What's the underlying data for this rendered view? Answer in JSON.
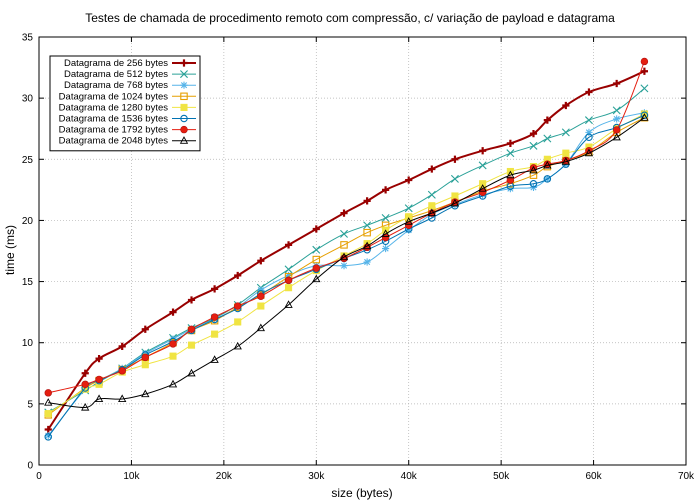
{
  "chart_data": {
    "type": "line",
    "title": "Testes de chamada de procedimento remoto com compressão, c/ variação de payload e datagrama",
    "xlabel": "size (bytes)",
    "ylabel": "time (ms)",
    "xlim": [
      0,
      70000
    ],
    "ylim": [
      0,
      35
    ],
    "xticks": [
      0,
      10000,
      20000,
      30000,
      40000,
      50000,
      60000,
      70000
    ],
    "xtick_labels": [
      "0",
      "10k",
      "20k",
      "30k",
      "40k",
      "50k",
      "60k",
      "70k"
    ],
    "yticks": [
      0,
      5,
      10,
      15,
      20,
      25,
      30,
      35
    ],
    "ytick_labels": [
      "0",
      "5",
      "10",
      "15",
      "20",
      "25",
      "30",
      "35"
    ],
    "grid": true,
    "legend_position": "top-left",
    "series": [
      {
        "name": "Datagrama de 256 bytes",
        "color": "#990000",
        "marker": "plus",
        "x": [
          1000,
          5000,
          6500,
          9000,
          11500,
          14500,
          16500,
          19000,
          21500,
          24000,
          27000,
          30000,
          33000,
          35500,
          37500,
          40000,
          42500,
          45000,
          48000,
          51000,
          53500,
          55000,
          57000,
          59500,
          62500,
          65500
        ],
        "y": [
          2.9,
          7.5,
          8.7,
          9.7,
          11.1,
          12.5,
          13.5,
          14.4,
          15.5,
          16.7,
          18.0,
          19.3,
          20.6,
          21.6,
          22.5,
          23.3,
          24.2,
          25.0,
          25.7,
          26.3,
          27.1,
          28.2,
          29.4,
          30.5,
          31.2,
          32.2
        ]
      },
      {
        "name": "Datagrama de 512 bytes",
        "color": "#2aa198",
        "marker": "x",
        "x": [
          1000,
          5000,
          6500,
          9000,
          11500,
          14500,
          16500,
          19000,
          21500,
          24000,
          27000,
          30000,
          33000,
          35500,
          37500,
          40000,
          42500,
          45000,
          48000,
          51000,
          53500,
          55000,
          57000,
          59500,
          62500,
          65500
        ],
        "y": [
          4.3,
          6.1,
          6.8,
          7.9,
          9.2,
          10.4,
          11.2,
          12.0,
          13.1,
          14.5,
          16.0,
          17.6,
          18.9,
          19.6,
          20.2,
          21.0,
          22.1,
          23.4,
          24.5,
          25.5,
          26.1,
          26.7,
          27.2,
          28.2,
          29.0,
          30.8
        ]
      },
      {
        "name": "Datagrama de 768 bytes",
        "color": "#56b4e9",
        "marker": "star",
        "x": [
          1000,
          5000,
          6500,
          9000,
          11500,
          14500,
          16500,
          19000,
          21500,
          24000,
          27000,
          30000,
          33000,
          35500,
          37500,
          40000,
          42500,
          45000,
          48000,
          51000,
          53500,
          55000,
          57000,
          59500,
          62500,
          65500
        ],
        "y": [
          2.4,
          6.2,
          6.9,
          7.9,
          9.1,
          10.3,
          11.1,
          11.9,
          12.9,
          14.3,
          15.5,
          16.3,
          16.3,
          16.6,
          17.7,
          19.2,
          20.5,
          21.3,
          22.1,
          22.6,
          22.7,
          23.4,
          24.6,
          27.2,
          28.3,
          28.8
        ]
      },
      {
        "name": "Datagrama de 1024 bytes",
        "color": "#e69f00",
        "marker": "square-open",
        "x": [
          1000,
          5000,
          6500,
          9000,
          11500,
          14500,
          16500,
          19000,
          21500,
          24000,
          27000,
          30000,
          33000,
          35500,
          37500,
          40000,
          42500,
          45000,
          48000,
          51000,
          53500,
          55000,
          57000,
          59500,
          62500,
          65500
        ],
        "y": [
          4.1,
          6.3,
          6.9,
          7.8,
          8.8,
          10.0,
          11.0,
          11.8,
          12.9,
          13.9,
          15.4,
          16.8,
          18.0,
          19.0,
          19.6,
          20.2,
          20.8,
          21.5,
          22.4,
          23.0,
          23.7,
          24.4,
          24.9,
          25.6,
          27.2,
          28.4
        ]
      },
      {
        "name": "Datagrama de 1280 bytes",
        "color": "#f0e442",
        "marker": "square-filled",
        "x": [
          1000,
          5000,
          6500,
          9000,
          11500,
          14500,
          16500,
          19000,
          21500,
          24000,
          27000,
          30000,
          33000,
          35500,
          37500,
          40000,
          42500,
          45000,
          48000,
          51000,
          53500,
          55000,
          57000,
          59500,
          62500,
          65500
        ],
        "y": [
          4.2,
          6.2,
          6.6,
          7.6,
          8.2,
          8.9,
          9.8,
          10.7,
          11.7,
          13.0,
          14.5,
          15.9,
          17.1,
          18.1,
          19.2,
          20.3,
          21.2,
          22.0,
          23.0,
          24.0,
          24.4,
          25.0,
          25.5,
          26.0,
          27.5,
          28.7
        ]
      },
      {
        "name": "Datagrama de 1536 bytes",
        "color": "#0072b2",
        "marker": "circle-open",
        "x": [
          1000,
          5000,
          6500,
          9000,
          11500,
          14500,
          16500,
          19000,
          21500,
          24000,
          27000,
          30000,
          33000,
          35500,
          37500,
          40000,
          42500,
          45000,
          48000,
          51000,
          53500,
          55000,
          57000,
          59500,
          62500,
          65500
        ],
        "y": [
          2.3,
          6.3,
          6.9,
          7.8,
          9.0,
          10.1,
          11.0,
          11.9,
          12.8,
          14.0,
          15.1,
          16.0,
          16.9,
          17.6,
          18.3,
          19.3,
          20.2,
          21.2,
          22.0,
          22.8,
          23.0,
          23.4,
          24.6,
          26.8,
          27.6,
          28.6
        ]
      },
      {
        "name": "Datagrama de 1792 bytes",
        "color": "#e51e10",
        "marker": "circle-filled",
        "x": [
          1000,
          5000,
          6500,
          9000,
          11500,
          14500,
          16500,
          19000,
          21500,
          24000,
          27000,
          30000,
          33000,
          35500,
          37500,
          40000,
          42500,
          45000,
          48000,
          51000,
          53500,
          55000,
          57000,
          59500,
          62500,
          65500
        ],
        "y": [
          5.9,
          6.6,
          7.0,
          7.7,
          8.8,
          9.9,
          11.1,
          12.1,
          13.0,
          13.8,
          15.1,
          16.1,
          16.9,
          17.8,
          18.6,
          19.6,
          20.6,
          21.5,
          22.3,
          23.3,
          24.3,
          24.6,
          24.9,
          25.7,
          27.4,
          33.0
        ]
      },
      {
        "name": "Datagrama de 2048 bytes",
        "color": "#000000",
        "marker": "triangle-open",
        "x": [
          1000,
          5000,
          6500,
          9000,
          11500,
          14500,
          16500,
          19000,
          21500,
          24000,
          27000,
          30000,
          33000,
          35500,
          37500,
          40000,
          42500,
          45000,
          48000,
          51000,
          53500,
          55000,
          57000,
          59500,
          62500,
          65500
        ],
        "y": [
          5.1,
          4.7,
          5.4,
          5.4,
          5.8,
          6.6,
          7.5,
          8.6,
          9.7,
          11.2,
          13.1,
          15.2,
          17.0,
          17.9,
          18.9,
          19.9,
          20.6,
          21.4,
          22.6,
          23.7,
          24.1,
          24.5,
          24.8,
          25.5,
          26.8,
          28.4
        ]
      }
    ]
  }
}
